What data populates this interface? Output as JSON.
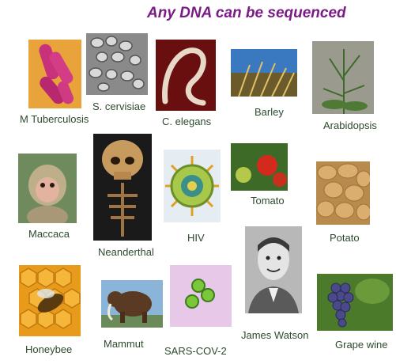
{
  "title": "Any DNA can be sequenced",
  "organisms": [
    {
      "label": "M Tuberculosis",
      "icon": "bacteria-icon"
    },
    {
      "label": "S. cervisiae",
      "icon": "yeast-cells-icon"
    },
    {
      "label": "C. elegans",
      "icon": "worm-icon"
    },
    {
      "label": "Barley",
      "icon": "barley-icon"
    },
    {
      "label": "Arabidopsis",
      "icon": "arabidopsis-plant-icon"
    },
    {
      "label": "Maccaca",
      "icon": "monkey-icon"
    },
    {
      "label": "Neanderthal",
      "icon": "skull-icon"
    },
    {
      "label": "HIV",
      "icon": "virus-icon"
    },
    {
      "label": "Tomato",
      "icon": "tomato-icon"
    },
    {
      "label": "Potato",
      "icon": "potato-icon"
    },
    {
      "label": "James Watson",
      "icon": "portrait-icon"
    },
    {
      "label": "Honeybee",
      "icon": "honeybee-icon"
    },
    {
      "label": "Mammut",
      "icon": "mammoth-icon"
    },
    {
      "label": "SARS-COV-2",
      "icon": "coronavirus-icon"
    },
    {
      "label": "Grape wine",
      "icon": "grapes-icon"
    }
  ]
}
